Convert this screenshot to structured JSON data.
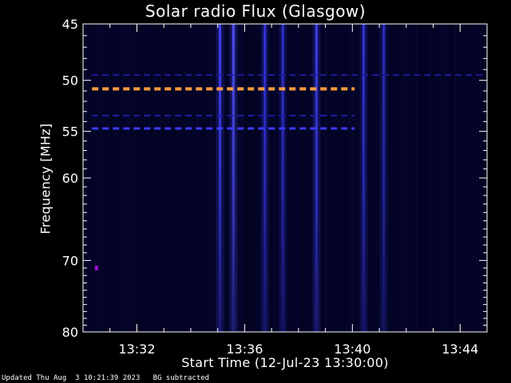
{
  "chart_data": {
    "type": "heatmap",
    "title": "Solar radio Flux (Glasgow)",
    "xlabel": "Start Time (12-Jul-23 13:30:00)",
    "ylabel": "Frequency [MHz]",
    "footer_updated": "Updated Thu Aug  3 10:21:39 2023",
    "footer_note": "BG subtracted",
    "x_range": [
      "13:30:00",
      "13:45:00"
    ],
    "x_ticks": [
      "13:32",
      "13:36",
      "13:40",
      "13:44"
    ],
    "y_range": [
      45,
      80
    ],
    "y_scale": "log",
    "y_ticks": [
      45,
      50,
      55,
      60,
      70,
      80
    ],
    "colors": {
      "background": "#000000",
      "plot": "#02021c",
      "emission": "#2a2aff",
      "hot": "#ff9a3c",
      "axis": "#ffffff"
    },
    "features": [
      {
        "kind": "horizontal-band",
        "freq_mhz": 50.8,
        "from": "13:30:20",
        "to": "13:40:05",
        "color": "#ff9a3c"
      },
      {
        "kind": "horizontal-band",
        "freq_mhz": 54.7,
        "from": "13:30:20",
        "to": "13:40:05",
        "color": "#3a3aff"
      },
      {
        "kind": "horizontal-band",
        "freq_mhz": 53.4,
        "from": "13:30:20",
        "to": "13:40:05",
        "color": "#1c1ca8"
      },
      {
        "kind": "horizontal-band",
        "freq_mhz": 49.5,
        "from": "13:30:20",
        "to": "13:45:00",
        "color": "#1a1a9a"
      },
      {
        "kind": "vertical-burst",
        "time": "13:35:05",
        "color": "#4444ff"
      },
      {
        "kind": "vertical-burst",
        "time": "13:35:35",
        "color": "#5050ff"
      },
      {
        "kind": "vertical-burst",
        "time": "13:36:45",
        "color": "#3838e8"
      },
      {
        "kind": "vertical-burst",
        "time": "13:37:25",
        "color": "#3434d8"
      },
      {
        "kind": "vertical-burst",
        "time": "13:38:40",
        "color": "#4040f0"
      },
      {
        "kind": "vertical-burst",
        "time": "13:40:25",
        "color": "#3636e0"
      },
      {
        "kind": "vertical-burst",
        "time": "13:41:10",
        "color": "#3030c8"
      },
      {
        "kind": "point",
        "time": "13:30:30",
        "freq_mhz": 71.0,
        "color": "#a010d0"
      }
    ]
  }
}
